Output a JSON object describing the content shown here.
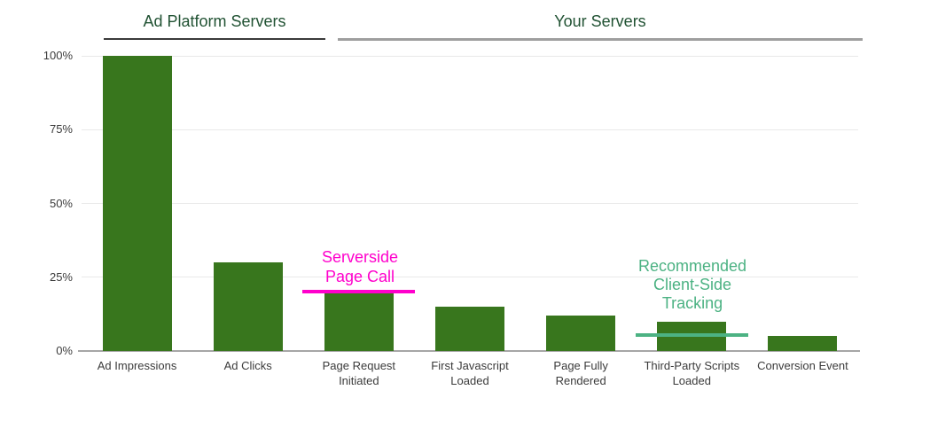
{
  "chart_data": {
    "type": "bar",
    "title": "",
    "categories": [
      "Ad Impressions",
      "Ad Clicks",
      "Page Request Initiated",
      "First Javascript Loaded",
      "Page Fully Rendered",
      "Third-Party Scripts Loaded",
      "Conversion Event"
    ],
    "values": [
      100,
      30,
      20,
      15,
      12,
      10,
      5
    ],
    "value_unit": "percent",
    "xlabel": "",
    "ylabel": "",
    "ylim": [
      0,
      100
    ],
    "yticks": [
      0,
      25,
      50,
      75,
      100
    ],
    "ytick_labels": [
      "0%",
      "25%",
      "50%",
      "75%",
      "100%"
    ],
    "grid": "horizontal",
    "legend": "none",
    "bar_color": "#38761D",
    "group_headers": [
      {
        "label": "Ad Platform Servers",
        "category_start": 0,
        "category_end": 1,
        "underline_color": "#3a3a3a"
      },
      {
        "label": "Your Servers",
        "category_start": 2,
        "category_end": 6,
        "underline_color": "#9e9e9e"
      }
    ],
    "annotations": [
      {
        "text": "Serverside\nPage Call",
        "color": "#FF00CC",
        "line_value_percent": 20,
        "over_category": "Page Request Initiated"
      },
      {
        "text": "Recommended\nClient-Side\nTracking",
        "color": "#4CB283",
        "line_value_percent": 5.5,
        "over_category": "Third-Party Scripts Loaded"
      }
    ],
    "colors": {
      "background": "#ffffff",
      "axis_label_text": "#3b3b3b",
      "header_text": "#215233",
      "gridline": "#e9e9e9",
      "baseline": "#a6a6a6"
    }
  }
}
